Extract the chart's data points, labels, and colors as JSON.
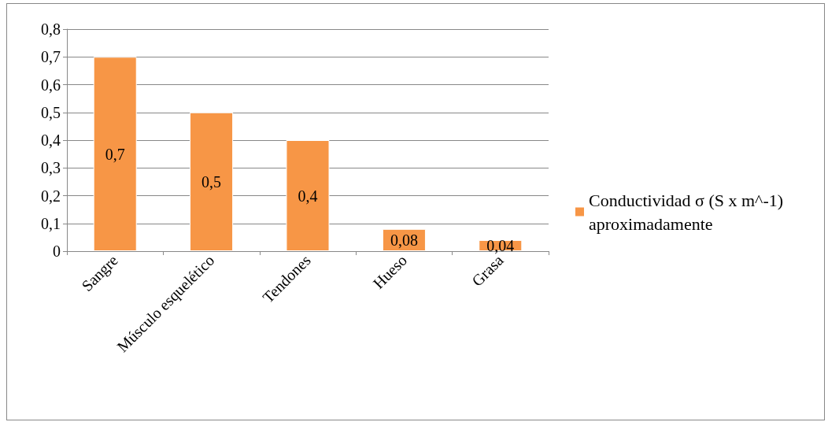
{
  "chart_data": {
    "type": "bar",
    "categories": [
      "Sangre",
      "Músculo esquelético",
      "Tendones",
      "Hueso",
      "Grasa"
    ],
    "series": [
      {
        "name": "Conductividad σ (S x m^-1) aproximadamente",
        "color": "#f79646",
        "values": [
          0.7,
          0.5,
          0.4,
          0.08,
          0.04
        ],
        "value_labels": [
          "0,7",
          "0,5",
          "0,4",
          "0,08",
          "0,04"
        ]
      }
    ],
    "ylim": [
      0,
      0.8
    ],
    "yticks": [
      0,
      {
        "value": 0.1,
        "label": "0,1"
      },
      {
        "value": 0.2,
        "label": "0,2"
      },
      {
        "value": 0.3,
        "label": "0,3"
      },
      {
        "value": 0.4,
        "label": "0,4"
      },
      {
        "value": 0.5,
        "label": "0,5"
      },
      {
        "value": 0.6,
        "label": "0,6"
      },
      {
        "value": 0.7,
        "label": "0,7"
      },
      {
        "value": 0.8,
        "label": "0,8"
      }
    ],
    "grid": "y",
    "legend": "right"
  }
}
